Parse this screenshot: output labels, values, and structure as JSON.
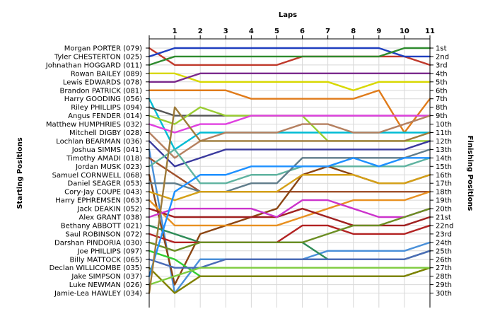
{
  "chart_data": {
    "type": "line",
    "title": "Laps",
    "ylabel_left": "Starting Positions",
    "ylabel_right": "Finishing Positions",
    "laps": [
      "1",
      "2",
      "3",
      "4",
      "5",
      "6",
      "7",
      "8",
      "9",
      "10",
      "11"
    ],
    "finishing_positions": [
      "1st",
      "2nd",
      "3rd",
      "4th",
      "5th",
      "6th",
      "7th",
      "8th",
      "9th",
      "10th",
      "11th",
      "12th",
      "13th",
      "14th",
      "15th",
      "16th",
      "17th",
      "18th",
      "19th",
      "20th",
      "21st",
      "22nd",
      "23rd",
      "24th",
      "25th",
      "26th",
      "27th",
      "28th",
      "29th",
      "30th"
    ],
    "grid": true,
    "drivers": [
      {
        "name": "Morgan PORTER (079)",
        "color": "#c0392b",
        "positions": [
          1,
          3,
          3,
          3,
          3,
          3,
          2,
          2,
          2,
          2,
          2,
          3
        ]
      },
      {
        "name": "Tyler CHESTERTON (025)",
        "color": "#1f3fbf",
        "positions": [
          2,
          1,
          1,
          1,
          1,
          1,
          1,
          1,
          1,
          1,
          2,
          2
        ]
      },
      {
        "name": "Johnathan HOGGARD (011)",
        "color": "#2e8b2e",
        "positions": [
          3,
          2,
          2,
          2,
          2,
          2,
          2,
          2,
          2,
          2,
          1,
          1
        ]
      },
      {
        "name": "Rowan BAILEY (089)",
        "color": "#d8d800",
        "positions": [
          4,
          4,
          5,
          5,
          5,
          5,
          5,
          5,
          6,
          5,
          5,
          5
        ]
      },
      {
        "name": "Lewis EDWARDS (078)",
        "color": "#7b2a8c",
        "positions": [
          5,
          5,
          4,
          4,
          4,
          4,
          4,
          4,
          4,
          4,
          4,
          4
        ]
      },
      {
        "name": "Brandon PATRICK (081)",
        "color": "#e07b1a",
        "positions": [
          6,
          6,
          6,
          6,
          7,
          7,
          7,
          7,
          7,
          6,
          11,
          7
        ]
      },
      {
        "name": "Harry GOODING (056)",
        "color": "#00bcd4",
        "positions": [
          7,
          13,
          11,
          11,
          11,
          11,
          11,
          11,
          11,
          11,
          11,
          11
        ]
      },
      {
        "name": "Riley PHILLIPS (094)",
        "color": "#555555",
        "positions": [
          8,
          9,
          9,
          9,
          9,
          9,
          9,
          9,
          9,
          9,
          9,
          9
        ]
      },
      {
        "name": "Angus FENDER (014)",
        "color": "#9acd32",
        "positions": [
          9,
          10,
          8,
          9,
          9,
          9,
          9,
          12,
          12,
          12,
          12,
          12
        ]
      },
      {
        "name": "Matthew HUMPHRIES (032)",
        "color": "#e040e0",
        "positions": [
          10,
          11,
          10,
          10,
          9,
          9,
          9,
          9,
          9,
          9,
          9,
          9
        ]
      },
      {
        "name": "Mitchell DIGBY (028)",
        "color": "#b58060",
        "positions": [
          11,
          14,
          12,
          11,
          11,
          11,
          10,
          10,
          11,
          11,
          10,
          9
        ]
      },
      {
        "name": "Lochlan BEARMAN (036)",
        "color": "#3a3a9e",
        "positions": [
          12,
          15,
          14,
          13,
          13,
          13,
          13,
          13,
          13,
          13,
          13,
          12
        ]
      },
      {
        "name": "Joshua SIMMS (041)",
        "color": "#4a90d9",
        "positions": [
          13,
          30,
          26,
          26,
          26,
          26,
          26,
          25,
          25,
          25,
          25,
          24
        ]
      },
      {
        "name": "Timothy AMADI (018)",
        "color": "#a0522d",
        "positions": [
          14,
          16,
          18,
          18,
          18,
          18,
          18,
          18,
          18,
          18,
          18,
          18
        ]
      },
      {
        "name": "Jordan MUSK (023)",
        "color": "#5fb3a0",
        "positions": [
          15,
          13,
          17,
          17,
          16,
          16,
          15,
          15,
          15,
          15,
          15,
          14
        ]
      },
      {
        "name": "Samuel CORNWELL (068)",
        "color": "#8b4513",
        "positions": [
          16,
          29,
          23,
          22,
          21,
          20,
          16,
          15,
          16,
          17,
          17,
          16
        ]
      },
      {
        "name": "Daniel SEAGER (053)",
        "color": "#607d8b",
        "positions": [
          17,
          17,
          18,
          18,
          17,
          17,
          14,
          14,
          14,
          14,
          14,
          13
        ]
      },
      {
        "name": "Cory-Jay COUPE (043)",
        "color": "#d4a017",
        "positions": [
          18,
          19,
          18,
          18,
          18,
          18,
          16,
          16,
          16,
          17,
          17,
          16
        ]
      },
      {
        "name": "Harry EPHREMSEN (063)",
        "color": "#e89020",
        "positions": [
          19,
          22,
          22,
          22,
          22,
          22,
          21,
          20,
          19,
          19,
          19,
          18
        ]
      },
      {
        "name": "Jack DEAKIN (052)",
        "color": "#a02020",
        "positions": [
          20,
          21,
          21,
          21,
          21,
          21,
          20,
          21,
          22,
          22,
          22,
          21
        ]
      },
      {
        "name": "Alex GRANT (038)",
        "color": "#cc33cc",
        "positions": [
          21,
          20,
          20,
          20,
          20,
          21,
          19,
          19,
          20,
          21,
          21,
          20
        ]
      },
      {
        "name": "Bethany ABBOTT (021)",
        "color": "#2e8b57",
        "positions": [
          22,
          23,
          24,
          24,
          24,
          24,
          24,
          26,
          26,
          26,
          26,
          25
        ]
      },
      {
        "name": "Saul ROBINSON (072)",
        "color": "#b22222",
        "positions": [
          23,
          24,
          24,
          24,
          24,
          24,
          22,
          22,
          23,
          23,
          23,
          22
        ]
      },
      {
        "name": "Darshan PINDORIA (030)",
        "color": "#6b8e23",
        "positions": [
          24,
          25,
          24,
          24,
          24,
          24,
          24,
          23,
          22,
          22,
          21,
          20
        ]
      },
      {
        "name": "Joe PHILLIPS (097)",
        "color": "#32cd32",
        "positions": [
          25,
          26,
          28,
          28,
          28,
          28,
          28,
          28,
          28,
          28,
          28,
          27
        ]
      },
      {
        "name": "Billy MATTOCK (065)",
        "color": "#4b6cb7",
        "positions": [
          26,
          27,
          27,
          26,
          26,
          26,
          26,
          26,
          26,
          26,
          26,
          25
        ]
      },
      {
        "name": "Declan WILLICOMBE (035)",
        "color": "#808000",
        "positions": [
          27,
          30,
          28,
          28,
          28,
          28,
          28,
          28,
          28,
          28,
          28,
          27
        ]
      },
      {
        "name": "Jake SIMPSON (037)",
        "color": "#1e90ff",
        "positions": [
          28,
          18,
          16,
          16,
          15,
          15,
          15,
          15,
          14,
          15,
          14,
          14
        ]
      },
      {
        "name": "Luke NEWMAN (026)",
        "color": "#7fcc3f",
        "positions": [
          29,
          28,
          27,
          27,
          27,
          27,
          27,
          27,
          27,
          27,
          27,
          27
        ]
      },
      {
        "name": "Jamie-Lea HAWLEY (034)",
        "color": "#9e7b3a",
        "positions": [
          30,
          8,
          12,
          12,
          12,
          12,
          12,
          12,
          12,
          12,
          12,
          11
        ]
      }
    ]
  }
}
